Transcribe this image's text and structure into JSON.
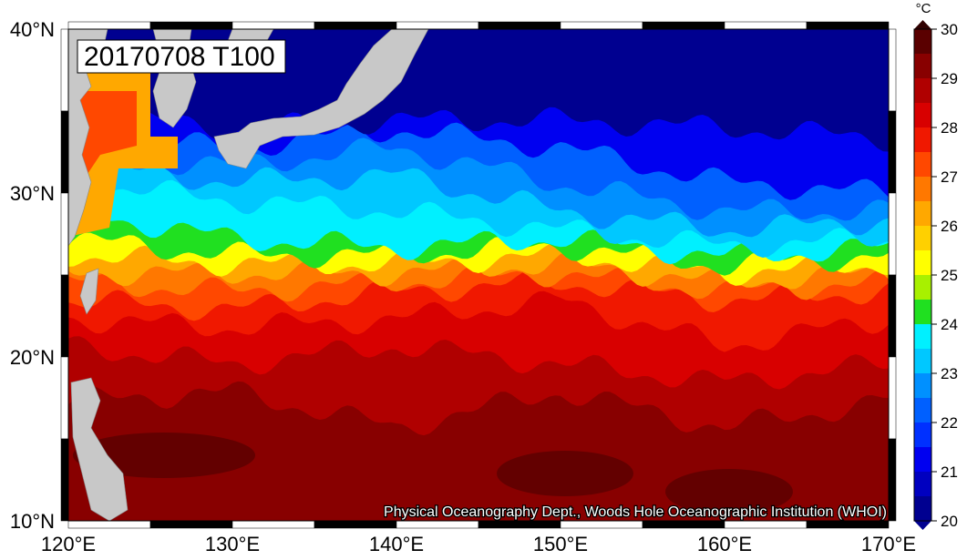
{
  "title": "20170708 T100",
  "unit": "°C",
  "lat_labels": [
    "40°N",
    "30°N",
    "20°N",
    "10°N"
  ],
  "lon_labels": [
    "120°E",
    "130°E",
    "140°E",
    "150°E",
    "160°E",
    "170°E"
  ],
  "colorbar": {
    "ticks": [
      20,
      21,
      22,
      23,
      24,
      25,
      26,
      27,
      28,
      29,
      30
    ],
    "colors": [
      "#000090",
      "#0000c0",
      "#0000f0",
      "#0030ff",
      "#0060ff",
      "#0090ff",
      "#00c8ff",
      "#00f0ff",
      "#20e020",
      "#a8f000",
      "#ffff00",
      "#ffd000",
      "#ffa800",
      "#ff7800",
      "#ff4800",
      "#f01800",
      "#d80000",
      "#b00000",
      "#880000",
      "#5a0000"
    ]
  },
  "credit": "Physical Oceanography Dept., Woods Hole Oceanographic Institution (WHOI)"
}
